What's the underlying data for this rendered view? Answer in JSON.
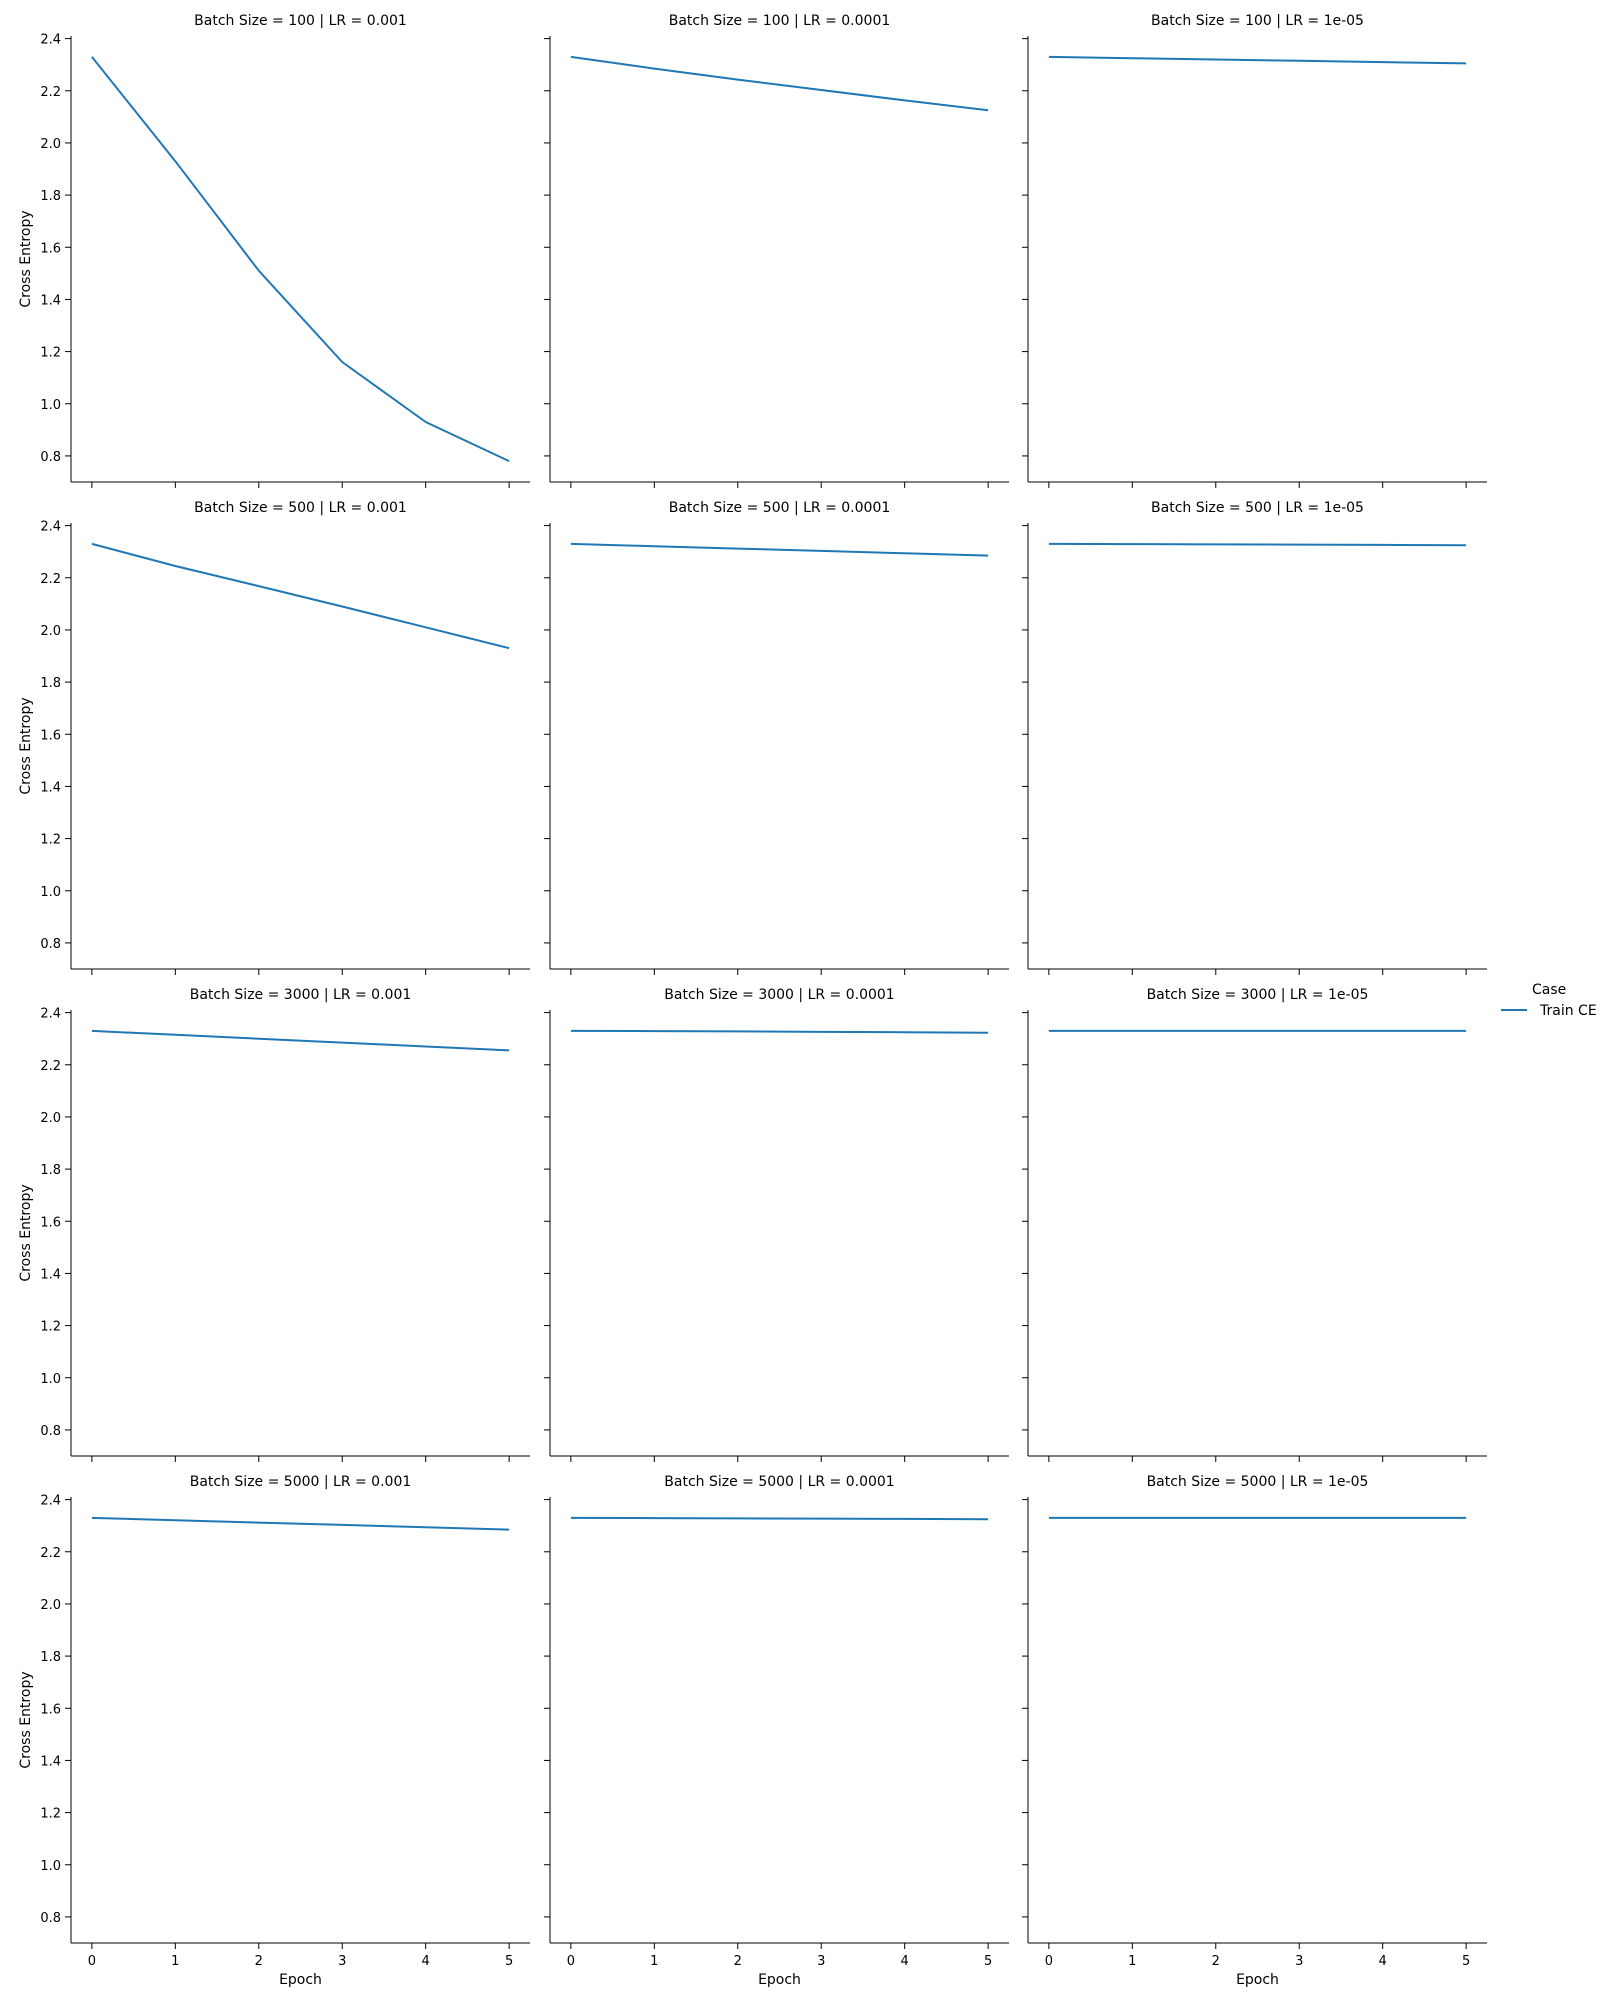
{
  "chart_data": {
    "type": "line",
    "layout": "facet-grid",
    "rows": 4,
    "cols": 3,
    "xlabel": "Epoch",
    "ylabel": "Cross Entropy",
    "xlim": [
      -0.25,
      5.25
    ],
    "ylim": [
      0.7,
      2.41
    ],
    "x_ticks": [
      0,
      1,
      2,
      3,
      4,
      5
    ],
    "x_tick_labels": [
      "0",
      "1",
      "2",
      "3",
      "4",
      "5"
    ],
    "y_ticks": [
      0.8,
      1.0,
      1.2,
      1.4,
      1.6,
      1.8,
      2.0,
      2.2,
      2.4
    ],
    "y_tick_labels": [
      "0.8",
      "1.0",
      "1.2",
      "1.4",
      "1.6",
      "1.8",
      "2.0",
      "2.2",
      "2.4"
    ],
    "grid": false,
    "legend": {
      "title": "Case",
      "placement": "right",
      "entries": [
        {
          "label": "Train CE",
          "color": "#1f77b4"
        }
      ]
    },
    "series_color": "#1f77b4",
    "x": [
      0,
      1,
      2,
      3,
      4,
      5
    ],
    "panels": [
      {
        "title": "Batch Size = 100 | LR = 0.001",
        "series": [
          {
            "name": "Train CE",
            "values": [
              2.33,
              1.93,
              1.51,
              1.16,
              0.93,
              0.78
            ]
          }
        ]
      },
      {
        "title": "Batch Size = 100 | LR = 0.0001",
        "series": [
          {
            "name": "Train CE",
            "values": [
              2.33,
              2.285,
              2.243,
              2.203,
              2.163,
              2.125
            ]
          }
        ]
      },
      {
        "title": "Batch Size = 100 | LR = 1e-05",
        "series": [
          {
            "name": "Train CE",
            "values": [
              2.33,
              2.325,
              2.32,
              2.315,
              2.31,
              2.305
            ]
          }
        ]
      },
      {
        "title": "Batch Size = 500 | LR = 0.001",
        "series": [
          {
            "name": "Train CE",
            "values": [
              2.33,
              2.245,
              2.168,
              2.09,
              2.01,
              1.93
            ]
          }
        ]
      },
      {
        "title": "Batch Size = 500 | LR = 0.0001",
        "series": [
          {
            "name": "Train CE",
            "values": [
              2.33,
              2.321,
              2.312,
              2.303,
              2.294,
              2.285
            ]
          }
        ]
      },
      {
        "title": "Batch Size = 500 | LR = 1e-05",
        "series": [
          {
            "name": "Train CE",
            "values": [
              2.33,
              2.329,
              2.328,
              2.327,
              2.326,
              2.325
            ]
          }
        ]
      },
      {
        "title": "Batch Size = 3000 | LR = 0.001",
        "series": [
          {
            "name": "Train CE",
            "values": [
              2.33,
              2.315,
              2.3,
              2.285,
              2.27,
              2.255
            ]
          }
        ]
      },
      {
        "title": "Batch Size = 3000 | LR = 0.0001",
        "series": [
          {
            "name": "Train CE",
            "values": [
              2.33,
              2.329,
              2.328,
              2.326,
              2.325,
              2.323
            ]
          }
        ]
      },
      {
        "title": "Batch Size = 3000 | LR = 1e-05",
        "series": [
          {
            "name": "Train CE",
            "values": [
              2.33,
              2.33,
              2.33,
              2.33,
              2.33,
              2.33
            ]
          }
        ]
      },
      {
        "title": "Batch Size = 5000 | LR = 0.001",
        "series": [
          {
            "name": "Train CE",
            "values": [
              2.33,
              2.321,
              2.312,
              2.303,
              2.294,
              2.285
            ]
          }
        ]
      },
      {
        "title": "Batch Size = 5000 | LR = 0.0001",
        "series": [
          {
            "name": "Train CE",
            "values": [
              2.33,
              2.329,
              2.328,
              2.327,
              2.326,
              2.325
            ]
          }
        ]
      },
      {
        "title": "Batch Size = 5000 | LR = 1e-05",
        "series": [
          {
            "name": "Train CE",
            "values": [
              2.33,
              2.33,
              2.33,
              2.33,
              2.33,
              2.33
            ]
          }
        ]
      }
    ]
  }
}
